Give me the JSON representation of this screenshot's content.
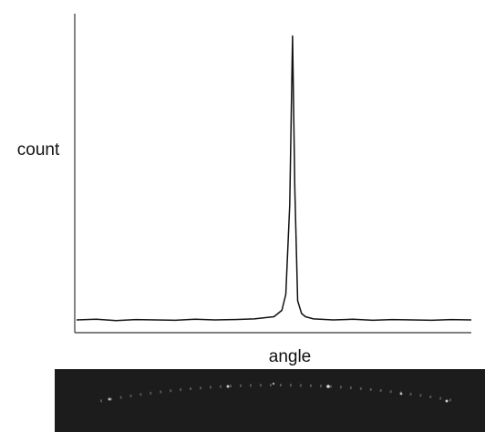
{
  "chart_data": {
    "type": "line",
    "xlabel": "angle",
    "ylabel": "count",
    "color": "#111111",
    "x": [
      0,
      5,
      10,
      15,
      20,
      25,
      30,
      35,
      40,
      45,
      50,
      52,
      53,
      54,
      54.7,
      55.3,
      56,
      57,
      58,
      60,
      65,
      70,
      75,
      80,
      85,
      90,
      95,
      100
    ],
    "values": [
      4,
      4.2,
      3.8,
      4.1,
      4,
      3.9,
      4.2,
      4,
      4.1,
      4.3,
      5,
      7,
      12,
      40,
      93,
      45,
      10,
      6,
      5,
      4.3,
      4,
      4.2,
      3.9,
      4.1,
      4,
      3.9,
      4.1,
      4
    ],
    "xlim": [
      0,
      100
    ],
    "ylim": [
      0,
      100
    ]
  }
}
